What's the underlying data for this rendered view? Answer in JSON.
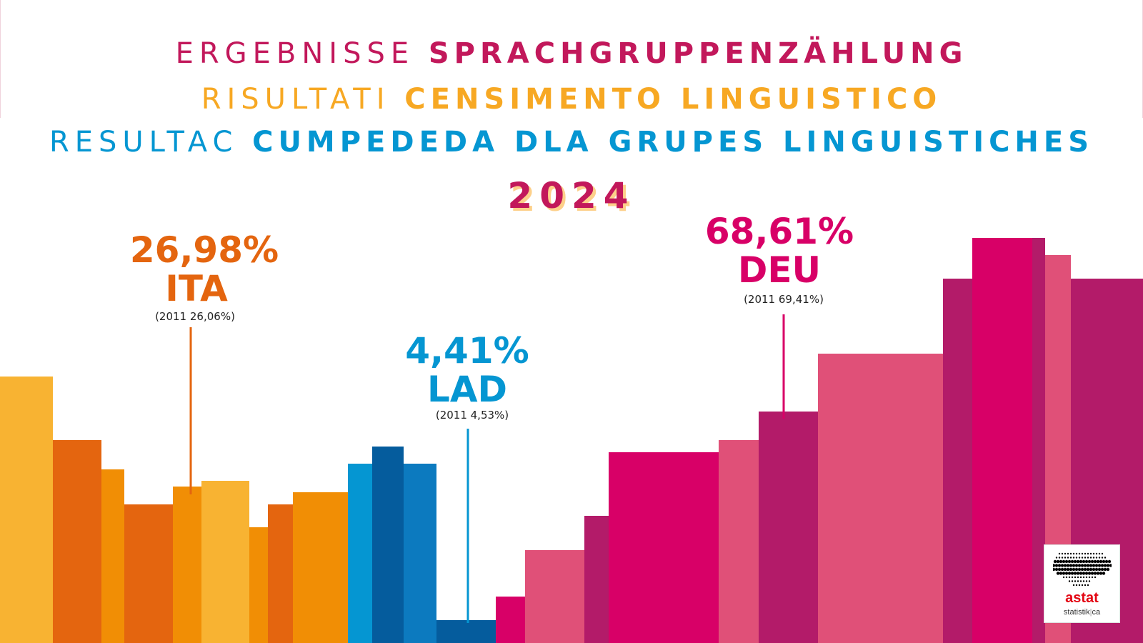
{
  "header": {
    "line1": {
      "light": "ERGEBNISSE",
      "bold": "SPRACHGRUPPENZÄHLUNG",
      "color": "#c2185b"
    },
    "line2": {
      "light": "RISULTATI",
      "bold": "CENSIMENTO LINGUISTICO",
      "color": "#f7a823"
    },
    "line3": {
      "light": "RESULTAC",
      "bold": "CUMPEDEDA DLA GRUPES LINGUISTICHES",
      "color": "#0596d2"
    },
    "year": "2024"
  },
  "logo": {
    "name": "astat",
    "subtitle_main": "statistik",
    "subtitle_sep": "|",
    "subtitle_end": "ca"
  },
  "chart_data": {
    "type": "bar",
    "title": "2024",
    "series": [
      {
        "name": "ITA",
        "value_label": "26,98%",
        "value": 26.98,
        "previous_label": "(2011 26,06%)",
        "previous_value": 26.06,
        "color": "#e4650f"
      },
      {
        "name": "LAD",
        "value_label": "4,41%",
        "value": 4.41,
        "previous_label": "(2011 4,53%)",
        "previous_value": 4.53,
        "color": "#0596d2"
      },
      {
        "name": "DEU",
        "value_label": "68,61%",
        "value": 68.61,
        "previous_label": "(2011 69,41%)",
        "previous_value": 69.41,
        "color": "#d80067"
      }
    ],
    "decorative_bars": [
      {
        "group": "ITA",
        "color": "#f8b332",
        "level": 0.46
      },
      {
        "group": "ITA",
        "color": "#e4650f",
        "level": 0.35
      },
      {
        "group": "ITA",
        "color": "#f18e05",
        "level": 0.3
      },
      {
        "group": "ITA",
        "color": "#e4650f",
        "level": 0.24
      },
      {
        "group": "ITA",
        "color": "#f18e05",
        "level": 0.27
      },
      {
        "group": "ITA",
        "color": "#f8b332",
        "level": 0.28
      },
      {
        "group": "ITA",
        "color": "#f18e05",
        "level": 0.2
      },
      {
        "group": "ITA",
        "color": "#e4650f",
        "level": 0.24
      },
      {
        "group": "ITA",
        "color": "#f18e05",
        "level": 0.26
      },
      {
        "group": "LAD",
        "color": "#0596d2",
        "level": 0.31
      },
      {
        "group": "LAD",
        "color": "#055c9d",
        "level": 0.34
      },
      {
        "group": "LAD",
        "color": "#0c7abf",
        "level": 0.31
      },
      {
        "group": "LAD",
        "color": "#055c9d",
        "level": 0.04
      },
      {
        "group": "DEU",
        "color": "#d80067",
        "level": 0.08
      },
      {
        "group": "DEU",
        "color": "#e05078",
        "level": 0.16
      },
      {
        "group": "DEU",
        "color": "#b31b69",
        "level": 0.22
      },
      {
        "group": "DEU",
        "color": "#d80067",
        "level": 0.33
      },
      {
        "group": "DEU",
        "color": "#e05078",
        "level": 0.35
      },
      {
        "group": "DEU",
        "color": "#b31b69",
        "level": 0.4
      },
      {
        "group": "DEU",
        "color": "#e05078",
        "level": 0.5
      },
      {
        "group": "DEU",
        "color": "#b31b69",
        "level": 0.63
      },
      {
        "group": "DEU",
        "color": "#d80067",
        "level": 0.7
      },
      {
        "group": "DEU",
        "color": "#b31b69",
        "level": 0.7
      },
      {
        "group": "DEU",
        "color": "#e05078",
        "level": 0.67
      },
      {
        "group": "DEU",
        "color": "#b31b69",
        "level": 0.63
      }
    ]
  }
}
